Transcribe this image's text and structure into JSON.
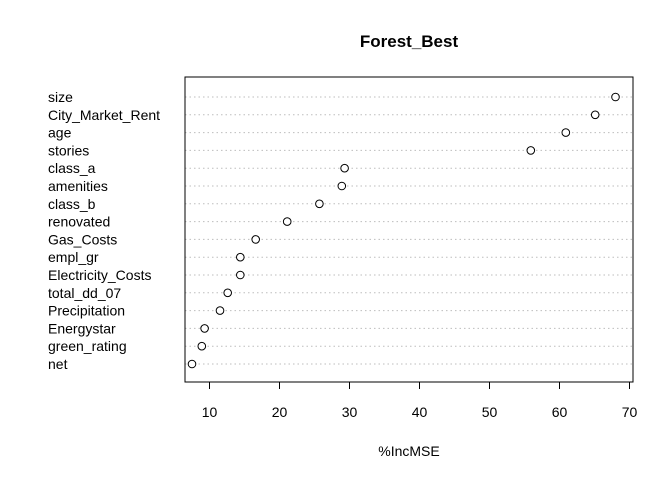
{
  "chart_data": {
    "type": "scatter",
    "title": "Forest_Best",
    "xlabel": "%IncMSE",
    "ylabel": "",
    "xlim": [
      6.5,
      70.5
    ],
    "xticks": [
      10,
      20,
      30,
      40,
      50,
      60,
      70
    ],
    "grid": "dotted horizontal lines per category",
    "categories": [
      "size",
      "City_Market_Rent",
      "age",
      "stories",
      "class_a",
      "amenities",
      "class_b",
      "renovated",
      "Gas_Costs",
      "empl_gr",
      "Electricity_Costs",
      "total_dd_07",
      "Precipitation",
      "Energystar",
      "green_rating",
      "net"
    ],
    "values": [
      68.0,
      65.1,
      60.9,
      55.9,
      29.3,
      28.9,
      25.7,
      21.1,
      16.6,
      14.4,
      14.4,
      12.6,
      11.5,
      9.3,
      8.9,
      7.5
    ]
  }
}
